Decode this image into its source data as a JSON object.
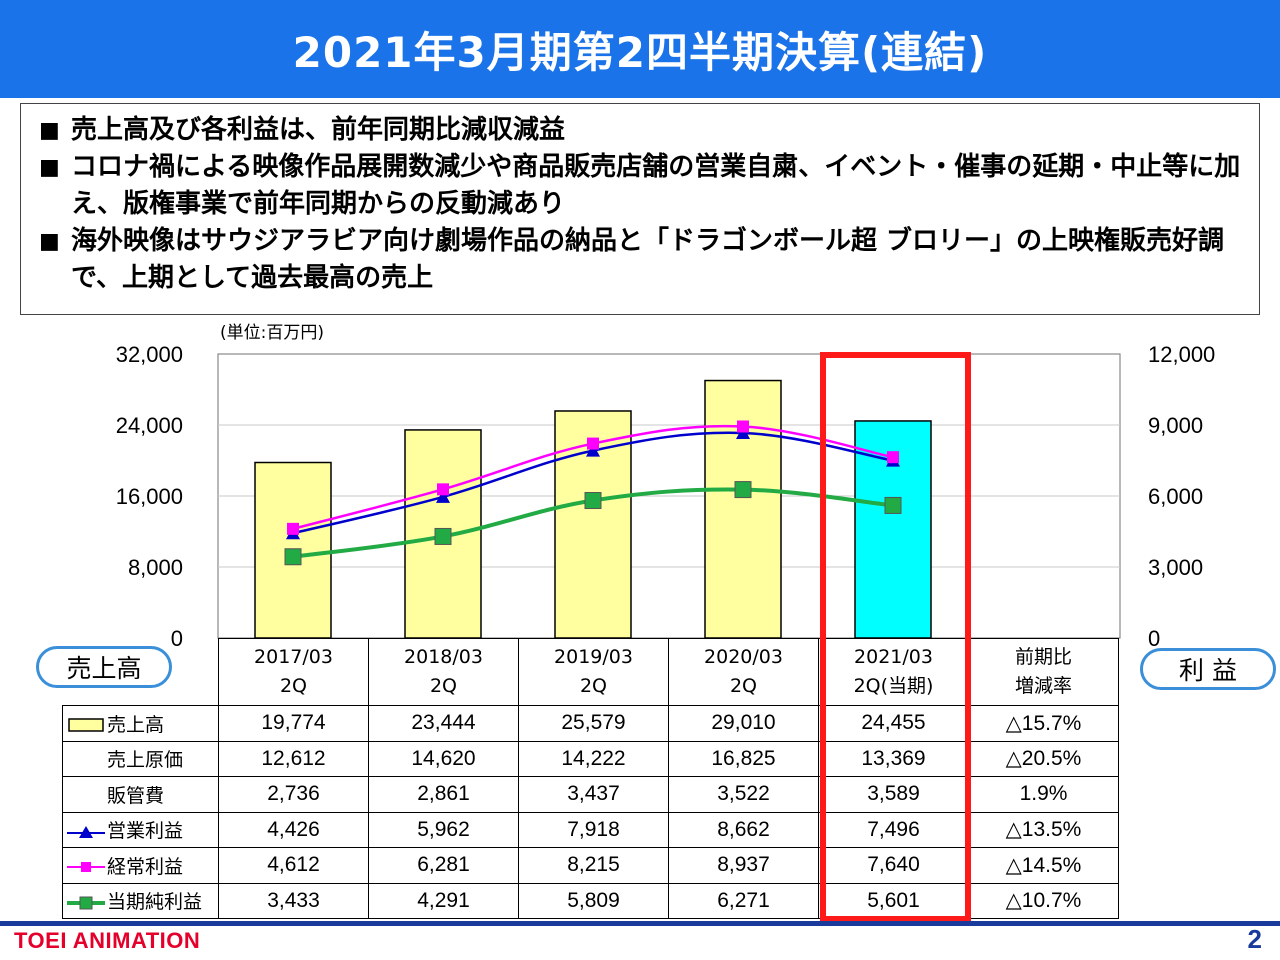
{
  "page": {
    "title": "2021年3月期第2四半期決算(連結)",
    "footer_brand": "TOEI ANIMATION",
    "page_number": "2"
  },
  "summary": {
    "bullets": [
      "売上高及び各利益は、前年同期比減収減益",
      "コロナ禍による映像作品展開数減少や商品販売店舗の営業自粛、イベント・催事の延期・中止等に加え、版権事業で前年同期からの反動減あり",
      "海外映像はサウジアラビア向け劇場作品の納品と「ドラゴンボール超 ブロリー」の上映権販売好調で、上期として過去最高の売上"
    ]
  },
  "chart_labels": {
    "unit": "(単位:百万円)",
    "left_axis_name": "売上高",
    "right_axis_name": "利 益"
  },
  "chart_data": {
    "type": "bar",
    "categories": [
      "2017/03\n2Q",
      "2018/03\n2Q",
      "2019/03\n2Q",
      "2020/03\n2Q",
      "2021/03\n2Q(当期)"
    ],
    "y_left": {
      "range": [
        0,
        32000
      ],
      "ticks": [
        "0",
        "8,000",
        "16,000",
        "24,000",
        "32,000"
      ]
    },
    "y_right": {
      "range": [
        0,
        12000
      ],
      "ticks": [
        "0",
        "3,000",
        "6,000",
        "9,000",
        "12,000"
      ]
    },
    "grid": true,
    "bars": {
      "name": "売上高",
      "axis": "left",
      "values": [
        19774,
        23444,
        25579,
        29010,
        24455
      ],
      "color": "#ffffa0",
      "highlight_color": "#00ffff",
      "highlight_index": 4
    },
    "lines": [
      {
        "name": "営業利益",
        "axis": "right",
        "values": [
          4426,
          5962,
          7918,
          8662,
          7496
        ],
        "color": "#0000cc",
        "marker": "triangle"
      },
      {
        "name": "経常利益",
        "axis": "right",
        "values": [
          4612,
          6281,
          8215,
          8937,
          7640
        ],
        "color": "#ff00ff",
        "marker": "square"
      },
      {
        "name": "当期純利益",
        "axis": "right",
        "values": [
          3433,
          4291,
          5809,
          6271,
          5601
        ],
        "color": "#22aa44",
        "marker": "square"
      }
    ]
  },
  "table": {
    "headers": [
      "2017/03",
      "2Q",
      "2018/03",
      "2Q",
      "2019/03",
      "2Q",
      "2020/03",
      "2Q",
      "2021/03",
      "2Q(当期)",
      "前期比",
      "増減率"
    ],
    "rows": [
      {
        "label": "売上高",
        "legend": "bar",
        "values": [
          "19,774",
          "23,444",
          "25,579",
          "29,010",
          "24,455",
          "△15.7%"
        ]
      },
      {
        "label": "売上原価",
        "legend": "none",
        "values": [
          "12,612",
          "14,620",
          "14,222",
          "16,825",
          "13,369",
          "△20.5%"
        ]
      },
      {
        "label": "販管費",
        "legend": "none",
        "values": [
          "2,736",
          "2,861",
          "3,437",
          "3,522",
          "3,589",
          "1.9%"
        ]
      },
      {
        "label": "営業利益",
        "legend": "blue-triangle",
        "values": [
          "4,426",
          "5,962",
          "7,918",
          "8,662",
          "7,496",
          "△13.5%"
        ]
      },
      {
        "label": "経常利益",
        "legend": "magenta-square",
        "values": [
          "4,612",
          "6,281",
          "8,215",
          "8,937",
          "7,640",
          "△14.5%"
        ]
      },
      {
        "label": "当期純利益",
        "legend": "green-square",
        "values": [
          "3,433",
          "4,291",
          "5,809",
          "6,271",
          "5,601",
          "△10.7%"
        ]
      }
    ]
  },
  "colors": {
    "title_bar": "#1a73e8",
    "highlight_frame": "#ff1a1a",
    "footer_brand": "#e4002b",
    "footer_line": "#1a3a9c"
  }
}
